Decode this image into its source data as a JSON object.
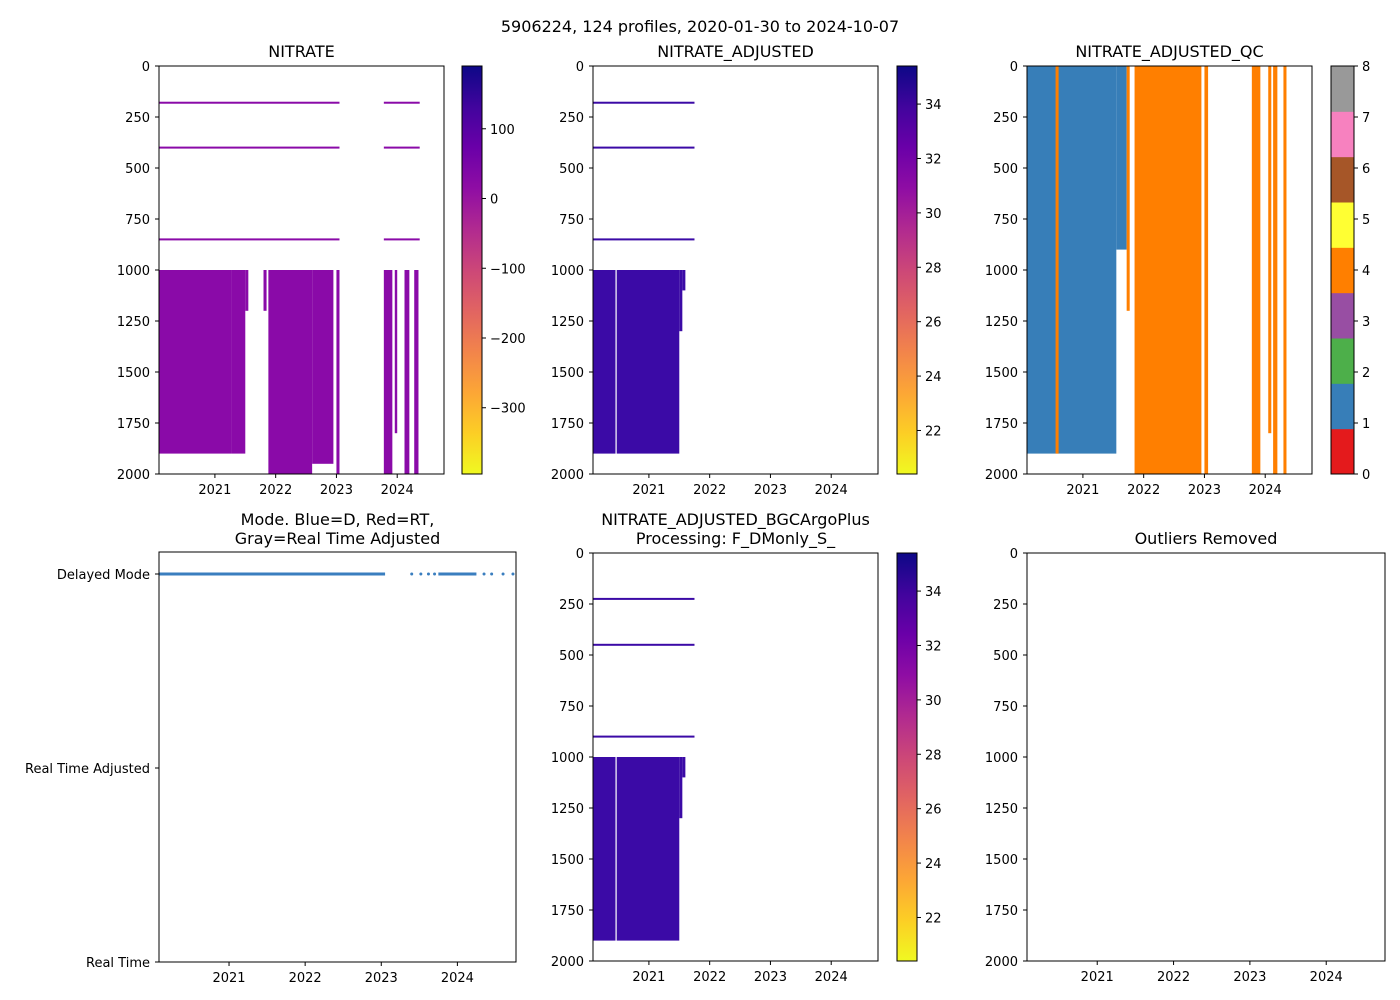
{
  "suptitle": "5906224, 124 profiles, 2020-01-30 to 2024-10-07",
  "colors": {
    "mode_delayed": "#3a7ebf",
    "nitrate_fill": "#8a0aa8",
    "adjusted_fill": "#3b0aa6",
    "qc_blue": "#377eb8",
    "qc_orange": "#ff7f00"
  },
  "chart_data": [
    {
      "id": "nitrate",
      "type": "heatmap",
      "title": "NITRATE",
      "xlim": [
        2020.08,
        2024.77
      ],
      "x_ticks": [
        2021,
        2022,
        2023,
        2024
      ],
      "x_tick_labels": [
        "2021",
        "2022",
        "2023",
        "2024"
      ],
      "ylim": [
        2000,
        0
      ],
      "y_ticks": [
        0,
        250,
        500,
        750,
        1000,
        1250,
        1500,
        1750,
        2000
      ],
      "y_tick_labels": [
        "0",
        "250",
        "500",
        "750",
        "1000",
        "1250",
        "1500",
        "1750",
        "2000"
      ],
      "fill_color": "#8a0aa8",
      "blocks": [
        {
          "x0": 2020.08,
          "x1": 2021.28,
          "y0": 1000,
          "y1": 1900
        },
        {
          "x0": 2021.28,
          "x1": 2021.5,
          "y0": 1000,
          "y1": 1900
        },
        {
          "x0": 2021.5,
          "x1": 2021.55,
          "y0": 1000,
          "y1": 1200
        },
        {
          "x0": 2021.8,
          "x1": 2021.85,
          "y0": 1000,
          "y1": 1200
        },
        {
          "x0": 2021.88,
          "x1": 2022.6,
          "y0": 1000,
          "y1": 2000
        },
        {
          "x0": 2022.6,
          "x1": 2022.95,
          "y0": 1000,
          "y1": 1950
        },
        {
          "x0": 2023.0,
          "x1": 2023.05,
          "y0": 1000,
          "y1": 2000
        },
        {
          "x0": 2023.78,
          "x1": 2023.92,
          "y0": 1000,
          "y1": 2000
        },
        {
          "x0": 2023.96,
          "x1": 2024.0,
          "y0": 1000,
          "y1": 1800
        },
        {
          "x0": 2024.12,
          "x1": 2024.2,
          "y0": 1000,
          "y1": 2000
        },
        {
          "x0": 2024.28,
          "x1": 2024.35,
          "y0": 1000,
          "y1": 2000
        }
      ],
      "lines": [
        {
          "x0": 2020.08,
          "x1": 2023.05,
          "y": 180
        },
        {
          "x0": 2023.78,
          "x1": 2024.37,
          "y": 180
        },
        {
          "x0": 2020.08,
          "x1": 2023.05,
          "y": 400
        },
        {
          "x0": 2023.78,
          "x1": 2024.37,
          "y": 400
        },
        {
          "x0": 2020.08,
          "x1": 2023.05,
          "y": 850
        },
        {
          "x0": 2023.78,
          "x1": 2024.37,
          "y": 850
        }
      ],
      "colorbar": {
        "type": "continuous",
        "cmap": "plasma_r",
        "vmin": -395,
        "vmax": 190,
        "ticks": [
          100,
          0,
          -100,
          -200,
          -300
        ],
        "tick_labels": [
          "100",
          "0",
          "−100",
          "−200",
          "−300"
        ]
      }
    },
    {
      "id": "nitrate_adjusted",
      "type": "heatmap",
      "title": "NITRATE_ADJUSTED",
      "xlim": [
        2020.08,
        2024.77
      ],
      "x_ticks": [
        2021,
        2022,
        2023,
        2024
      ],
      "x_tick_labels": [
        "2021",
        "2022",
        "2023",
        "2024"
      ],
      "ylim": [
        2000,
        0
      ],
      "y_ticks": [
        0,
        250,
        500,
        750,
        1000,
        1250,
        1500,
        1750,
        2000
      ],
      "y_tick_labels": [
        "0",
        "250",
        "500",
        "750",
        "1000",
        "1250",
        "1500",
        "1750",
        "2000"
      ],
      "fill_color": "#3b0aa6",
      "blocks": [
        {
          "x0": 2020.08,
          "x1": 2020.45,
          "y0": 1000,
          "y1": 1900
        },
        {
          "x0": 2020.47,
          "x1": 2021.5,
          "y0": 1000,
          "y1": 1900
        },
        {
          "x0": 2021.5,
          "x1": 2021.55,
          "y0": 1000,
          "y1": 1300
        },
        {
          "x0": 2021.55,
          "x1": 2021.6,
          "y0": 1000,
          "y1": 1100
        }
      ],
      "lines": [
        {
          "x0": 2020.08,
          "x1": 2021.75,
          "y": 180
        },
        {
          "x0": 2020.08,
          "x1": 2021.75,
          "y": 400
        },
        {
          "x0": 2020.08,
          "x1": 2021.75,
          "y": 850
        }
      ],
      "colorbar": {
        "type": "continuous",
        "cmap": "plasma_r",
        "vmin": 20.4,
        "vmax": 35.4,
        "ticks": [
          34,
          32,
          30,
          28,
          26,
          24,
          22
        ],
        "tick_labels": [
          "34",
          "32",
          "30",
          "28",
          "26",
          "24",
          "22"
        ]
      }
    },
    {
      "id": "nitrate_adjusted_qc",
      "type": "heatmap",
      "title": "NITRATE_ADJUSTED_QC",
      "xlim": [
        2020.08,
        2024.77
      ],
      "x_ticks": [
        2021,
        2022,
        2023,
        2024
      ],
      "x_tick_labels": [
        "2021",
        "2022",
        "2023",
        "2024"
      ],
      "ylim": [
        2000,
        0
      ],
      "y_ticks": [
        0,
        250,
        500,
        750,
        1000,
        1250,
        1500,
        1750,
        2000
      ],
      "y_tick_labels": [
        "0",
        "250",
        "500",
        "750",
        "1000",
        "1250",
        "1500",
        "1750",
        "2000"
      ],
      "blocks": [
        {
          "x0": 2020.08,
          "x1": 2021.55,
          "y0": 0,
          "y1": 1900,
          "qc": 1
        },
        {
          "x0": 2021.55,
          "x1": 2021.72,
          "y0": 0,
          "y1": 900,
          "qc": 1
        },
        {
          "x0": 2020.55,
          "x1": 2020.6,
          "y0": 0,
          "y1": 1900,
          "qc": 4
        },
        {
          "x0": 2021.72,
          "x1": 2021.77,
          "y0": 0,
          "y1": 1200,
          "qc": 4
        },
        {
          "x0": 2021.85,
          "x1": 2022.95,
          "y0": 0,
          "y1": 2000,
          "qc": 4
        },
        {
          "x0": 2023.0,
          "x1": 2023.06,
          "y0": 0,
          "y1": 2000,
          "qc": 4
        },
        {
          "x0": 2023.78,
          "x1": 2023.92,
          "y0": 0,
          "y1": 2000,
          "qc": 4
        },
        {
          "x0": 2024.05,
          "x1": 2024.1,
          "y0": 0,
          "y1": 1800,
          "qc": 4
        },
        {
          "x0": 2024.13,
          "x1": 2024.2,
          "y0": 0,
          "y1": 2000,
          "qc": 4
        },
        {
          "x0": 2024.3,
          "x1": 2024.35,
          "y0": 0,
          "y1": 2000,
          "qc": 4
        }
      ],
      "colorbar": {
        "type": "discrete",
        "vmin": 0,
        "vmax": 8,
        "colors": [
          "#e41a1c",
          "#377eb8",
          "#4daf4a",
          "#984ea3",
          "#ff7f00",
          "#ffff33",
          "#a65628",
          "#f781bf",
          "#999999"
        ],
        "ticks": [
          0,
          1,
          2,
          3,
          4,
          5,
          6,
          7,
          8
        ],
        "tick_labels": [
          "0",
          "1",
          "2",
          "3",
          "4",
          "5",
          "6",
          "7",
          "8"
        ]
      }
    },
    {
      "id": "mode",
      "type": "scatter",
      "title_lines": [
        "Mode. Blue=D, Red=RT,",
        "Gray=Real Time Adjusted"
      ],
      "xlim": [
        2020.08,
        2024.77
      ],
      "x_ticks": [
        2021,
        2022,
        2023,
        2024
      ],
      "x_tick_labels": [
        "2021",
        "2022",
        "2023",
        "2024"
      ],
      "y_categories": [
        "Delayed Mode",
        "Real Time Adjusted",
        "Real Time"
      ],
      "series": [
        {
          "name": "Delayed Mode",
          "x_ranges": [
            [
              2020.08,
              2023.05
            ],
            [
              2023.75,
              2024.25
            ]
          ],
          "x_points": [
            2023.4,
            2023.52,
            2023.62,
            2023.7,
            2024.35,
            2024.45,
            2024.6,
            2024.73
          ]
        }
      ]
    },
    {
      "id": "bgcargoplus",
      "type": "heatmap",
      "title_lines": [
        "NITRATE_ADJUSTED_BGCArgoPlus",
        "Processing: F_DMonly_S_"
      ],
      "xlim": [
        2020.08,
        2024.77
      ],
      "x_ticks": [
        2021,
        2022,
        2023,
        2024
      ],
      "x_tick_labels": [
        "2021",
        "2022",
        "2023",
        "2024"
      ],
      "ylim": [
        2000,
        0
      ],
      "y_ticks": [
        0,
        250,
        500,
        750,
        1000,
        1250,
        1500,
        1750,
        2000
      ],
      "y_tick_labels": [
        "0",
        "250",
        "500",
        "750",
        "1000",
        "1250",
        "1500",
        "1750",
        "2000"
      ],
      "fill_color": "#3b0aa6",
      "blocks": [
        {
          "x0": 2020.08,
          "x1": 2020.45,
          "y0": 1000,
          "y1": 1900
        },
        {
          "x0": 2020.47,
          "x1": 2021.5,
          "y0": 1000,
          "y1": 1900
        },
        {
          "x0": 2021.5,
          "x1": 2021.55,
          "y0": 1000,
          "y1": 1300
        },
        {
          "x0": 2021.55,
          "x1": 2021.6,
          "y0": 1000,
          "y1": 1100
        }
      ],
      "lines": [
        {
          "x0": 2020.08,
          "x1": 2021.75,
          "y": 225
        },
        {
          "x0": 2020.08,
          "x1": 2021.75,
          "y": 450
        },
        {
          "x0": 2020.08,
          "x1": 2021.75,
          "y": 900
        }
      ],
      "colorbar": {
        "type": "continuous",
        "cmap": "plasma_r",
        "vmin": 20.4,
        "vmax": 35.4,
        "ticks": [
          34,
          32,
          30,
          28,
          26,
          24,
          22
        ],
        "tick_labels": [
          "34",
          "32",
          "30",
          "28",
          "26",
          "24",
          "22"
        ]
      }
    },
    {
      "id": "outliers",
      "type": "scatter",
      "title": "Outliers Removed",
      "xlim": [
        2020.08,
        2024.77
      ],
      "x_ticks": [
        2021,
        2022,
        2023,
        2024
      ],
      "x_tick_labels": [
        "2021",
        "2022",
        "2023",
        "2024"
      ],
      "ylim": [
        2000,
        0
      ],
      "y_ticks": [
        0,
        250,
        500,
        750,
        1000,
        1250,
        1500,
        1750,
        2000
      ],
      "y_tick_labels": [
        "0",
        "250",
        "500",
        "750",
        "1000",
        "1250",
        "1500",
        "1750",
        "2000"
      ],
      "series": []
    }
  ]
}
